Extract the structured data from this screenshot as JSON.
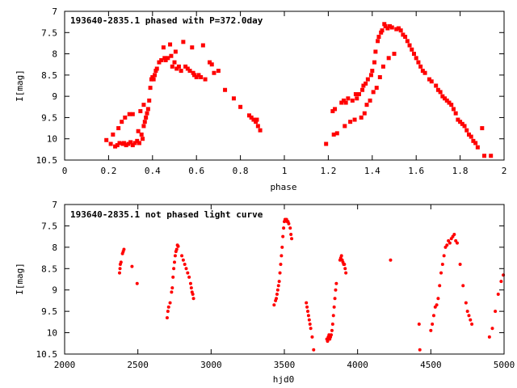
{
  "chart_data": [
    {
      "type": "scatter",
      "title": "193640-2835.1 phased with P=372.0day",
      "xlabel": "phase",
      "ylabel": "I[mag]",
      "xlim": [
        0,
        2
      ],
      "ylim": [
        10.5,
        7
      ],
      "y_inverted": true,
      "xticks": [
        0,
        0.2,
        0.4,
        0.6,
        0.8,
        1,
        1.2,
        1.4,
        1.6,
        1.8,
        2
      ],
      "xtick_labels": [
        "0",
        "0.2",
        "0.4",
        "0.6",
        "0.8",
        "1",
        "1.2",
        "1.4",
        "1.6",
        "1.8",
        "2"
      ],
      "yticks": [
        7,
        7.5,
        8,
        8.5,
        9,
        9.5,
        10,
        10.5
      ],
      "ytick_labels": [
        "7",
        "7.5",
        "8",
        "8.5",
        "9",
        "9.5",
        "10",
        "10.5"
      ],
      "grid": false,
      "legend": "none",
      "marker_color": "#ff0000",
      "points": [
        [
          0.19,
          10.03
        ],
        [
          0.21,
          10.12
        ],
        [
          0.22,
          9.9
        ],
        [
          0.23,
          10.18
        ],
        [
          0.24,
          10.15
        ],
        [
          0.245,
          9.75
        ],
        [
          0.25,
          10.1
        ],
        [
          0.26,
          9.6
        ],
        [
          0.265,
          10.12
        ],
        [
          0.27,
          10.1
        ],
        [
          0.275,
          9.5
        ],
        [
          0.28,
          10.15
        ],
        [
          0.29,
          10.12
        ],
        [
          0.295,
          9.42
        ],
        [
          0.3,
          10.08
        ],
        [
          0.31,
          9.42
        ],
        [
          0.31,
          10.15
        ],
        [
          0.32,
          10.1
        ],
        [
          0.33,
          10.05
        ],
        [
          0.335,
          9.82
        ],
        [
          0.34,
          10.1
        ],
        [
          0.345,
          9.35
        ],
        [
          0.35,
          9.9
        ],
        [
          0.355,
          10.0
        ],
        [
          0.36,
          9.7
        ],
        [
          0.36,
          9.2
        ],
        [
          0.365,
          9.6
        ],
        [
          0.37,
          9.5
        ],
        [
          0.375,
          9.4
        ],
        [
          0.38,
          9.3
        ],
        [
          0.385,
          9.1
        ],
        [
          0.39,
          8.8
        ],
        [
          0.395,
          8.6
        ],
        [
          0.4,
          8.55
        ],
        [
          0.405,
          8.6
        ],
        [
          0.41,
          8.5
        ],
        [
          0.415,
          8.4
        ],
        [
          0.42,
          8.35
        ],
        [
          0.43,
          8.2
        ],
        [
          0.44,
          8.15
        ],
        [
          0.45,
          7.85
        ],
        [
          0.455,
          8.1
        ],
        [
          0.46,
          8.15
        ],
        [
          0.47,
          8.1
        ],
        [
          0.48,
          7.78
        ],
        [
          0.485,
          8.05
        ],
        [
          0.49,
          8.3
        ],
        [
          0.5,
          8.2
        ],
        [
          0.505,
          7.95
        ],
        [
          0.51,
          8.35
        ],
        [
          0.52,
          8.3
        ],
        [
          0.53,
          8.4
        ],
        [
          0.54,
          7.72
        ],
        [
          0.55,
          8.3
        ],
        [
          0.56,
          8.35
        ],
        [
          0.57,
          8.4
        ],
        [
          0.58,
          7.85
        ],
        [
          0.585,
          8.45
        ],
        [
          0.59,
          8.5
        ],
        [
          0.6,
          8.55
        ],
        [
          0.61,
          8.5
        ],
        [
          0.62,
          8.55
        ],
        [
          0.63,
          7.8
        ],
        [
          0.64,
          8.6
        ],
        [
          0.66,
          8.2
        ],
        [
          0.67,
          8.25
        ],
        [
          0.68,
          8.45
        ],
        [
          0.7,
          8.4
        ],
        [
          0.73,
          8.85
        ],
        [
          0.77,
          9.05
        ],
        [
          0.8,
          9.25
        ],
        [
          0.84,
          9.45
        ],
        [
          0.85,
          9.5
        ],
        [
          0.86,
          9.55
        ],
        [
          0.87,
          9.6
        ],
        [
          0.875,
          9.55
        ],
        [
          0.88,
          9.7
        ],
        [
          0.89,
          9.8
        ],
        [
          1.19,
          10.12
        ],
        [
          1.22,
          9.35
        ],
        [
          1.225,
          9.9
        ],
        [
          1.23,
          9.3
        ],
        [
          1.24,
          9.87
        ],
        [
          1.26,
          9.15
        ],
        [
          1.27,
          9.1
        ],
        [
          1.275,
          9.7
        ],
        [
          1.28,
          9.15
        ],
        [
          1.29,
          9.05
        ],
        [
          1.3,
          9.6
        ],
        [
          1.31,
          9.1
        ],
        [
          1.32,
          9.55
        ],
        [
          1.325,
          8.95
        ],
        [
          1.33,
          9.05
        ],
        [
          1.34,
          8.95
        ],
        [
          1.35,
          9.5
        ],
        [
          1.355,
          8.85
        ],
        [
          1.36,
          8.75
        ],
        [
          1.365,
          9.4
        ],
        [
          1.37,
          8.7
        ],
        [
          1.375,
          9.2
        ],
        [
          1.38,
          8.6
        ],
        [
          1.39,
          9.1
        ],
        [
          1.395,
          8.5
        ],
        [
          1.4,
          8.4
        ],
        [
          1.405,
          8.9
        ],
        [
          1.41,
          8.2
        ],
        [
          1.415,
          7.95
        ],
        [
          1.42,
          8.8
        ],
        [
          1.425,
          7.7
        ],
        [
          1.43,
          7.6
        ],
        [
          1.435,
          8.55
        ],
        [
          1.44,
          7.5
        ],
        [
          1.445,
          7.45
        ],
        [
          1.45,
          8.3
        ],
        [
          1.455,
          7.3
        ],
        [
          1.46,
          7.35
        ],
        [
          1.47,
          7.4
        ],
        [
          1.475,
          8.1
        ],
        [
          1.48,
          7.35
        ],
        [
          1.49,
          7.38
        ],
        [
          1.5,
          8.0
        ],
        [
          1.51,
          7.42
        ],
        [
          1.52,
          7.4
        ],
        [
          1.53,
          7.45
        ],
        [
          1.54,
          7.55
        ],
        [
          1.55,
          7.6
        ],
        [
          1.56,
          7.7
        ],
        [
          1.57,
          7.8
        ],
        [
          1.58,
          7.9
        ],
        [
          1.59,
          8.0
        ],
        [
          1.6,
          8.1
        ],
        [
          1.61,
          8.2
        ],
        [
          1.62,
          8.3
        ],
        [
          1.63,
          8.4
        ],
        [
          1.64,
          8.45
        ],
        [
          1.66,
          8.6
        ],
        [
          1.67,
          8.65
        ],
        [
          1.69,
          8.75
        ],
        [
          1.7,
          8.85
        ],
        [
          1.71,
          8.9
        ],
        [
          1.72,
          9.0
        ],
        [
          1.73,
          9.05
        ],
        [
          1.74,
          9.1
        ],
        [
          1.75,
          9.15
        ],
        [
          1.76,
          9.2
        ],
        [
          1.77,
          9.3
        ],
        [
          1.78,
          9.4
        ],
        [
          1.79,
          9.55
        ],
        [
          1.8,
          9.6
        ],
        [
          1.81,
          9.65
        ],
        [
          1.82,
          9.7
        ],
        [
          1.83,
          9.8
        ],
        [
          1.84,
          9.9
        ],
        [
          1.85,
          9.95
        ],
        [
          1.86,
          10.05
        ],
        [
          1.87,
          10.1
        ],
        [
          1.88,
          10.2
        ],
        [
          1.9,
          9.75
        ],
        [
          1.91,
          10.4
        ],
        [
          1.94,
          10.4
        ]
      ]
    },
    {
      "type": "scatter",
      "title": "193640-2835.1 not phased light curve",
      "xlabel": "hjd0",
      "ylabel": "I[mag]",
      "xlim": [
        2000,
        5000
      ],
      "ylim": [
        10.5,
        7
      ],
      "y_inverted": true,
      "xticks": [
        2000,
        2500,
        3000,
        3500,
        4000,
        4500,
        5000
      ],
      "xtick_labels": [
        "2000",
        "2500",
        "3000",
        "3500",
        "4000",
        "4500",
        "5000"
      ],
      "yticks": [
        7,
        7.5,
        8,
        8.5,
        9,
        9.5,
        10,
        10.5
      ],
      "ytick_labels": [
        "7",
        "7.5",
        "8",
        "8.5",
        "9",
        "9.5",
        "10",
        "10.5"
      ],
      "grid": false,
      "legend": "none",
      "marker_color": "#ff0000",
      "points": [
        [
          2375,
          8.6
        ],
        [
          2378,
          8.5
        ],
        [
          2380,
          8.4
        ],
        [
          2385,
          8.35
        ],
        [
          2395,
          8.15
        ],
        [
          2400,
          8.1
        ],
        [
          2405,
          8.05
        ],
        [
          2460,
          8.45
        ],
        [
          2495,
          8.85
        ],
        [
          2700,
          9.65
        ],
        [
          2705,
          9.5
        ],
        [
          2710,
          9.4
        ],
        [
          2720,
          9.3
        ],
        [
          2730,
          9.05
        ],
        [
          2735,
          8.95
        ],
        [
          2740,
          8.7
        ],
        [
          2745,
          8.5
        ],
        [
          2750,
          8.35
        ],
        [
          2755,
          8.2
        ],
        [
          2760,
          8.1
        ],
        [
          2765,
          8.05
        ],
        [
          2770,
          7.95
        ],
        [
          2775,
          7.98
        ],
        [
          2800,
          8.2
        ],
        [
          2810,
          8.3
        ],
        [
          2820,
          8.4
        ],
        [
          2830,
          8.5
        ],
        [
          2840,
          8.6
        ],
        [
          2850,
          8.7
        ],
        [
          2860,
          8.85
        ],
        [
          2865,
          8.95
        ],
        [
          2870,
          9.05
        ],
        [
          2875,
          9.1
        ],
        [
          2880,
          9.2
        ],
        [
          3430,
          9.35
        ],
        [
          3440,
          9.25
        ],
        [
          3445,
          9.2
        ],
        [
          3450,
          9.1
        ],
        [
          3455,
          9.0
        ],
        [
          3460,
          8.9
        ],
        [
          3465,
          8.8
        ],
        [
          3470,
          8.6
        ],
        [
          3475,
          8.4
        ],
        [
          3480,
          8.2
        ],
        [
          3485,
          8.0
        ],
        [
          3490,
          7.75
        ],
        [
          3495,
          7.55
        ],
        [
          3500,
          7.4
        ],
        [
          3505,
          7.35
        ],
        [
          3510,
          7.38
        ],
        [
          3515,
          7.35
        ],
        [
          3520,
          7.4
        ],
        [
          3525,
          7.4
        ],
        [
          3530,
          7.45
        ],
        [
          3540,
          7.55
        ],
        [
          3545,
          7.7
        ],
        [
          3550,
          7.8
        ],
        [
          3650,
          9.3
        ],
        [
          3655,
          9.4
        ],
        [
          3660,
          9.5
        ],
        [
          3665,
          9.6
        ],
        [
          3670,
          9.7
        ],
        [
          3675,
          9.8
        ],
        [
          3680,
          9.9
        ],
        [
          3690,
          10.1
        ],
        [
          3700,
          10.4
        ],
        [
          3790,
          10.15
        ],
        [
          3795,
          10.2
        ],
        [
          3800,
          10.1
        ],
        [
          3805,
          10.05
        ],
        [
          3810,
          10.15
        ],
        [
          3815,
          10.1
        ],
        [
          3820,
          10.05
        ],
        [
          3825,
          9.95
        ],
        [
          3830,
          9.8
        ],
        [
          3835,
          9.6
        ],
        [
          3840,
          9.4
        ],
        [
          3845,
          9.2
        ],
        [
          3850,
          9.0
        ],
        [
          3855,
          8.85
        ],
        [
          3880,
          8.3
        ],
        [
          3885,
          8.25
        ],
        [
          3890,
          8.2
        ],
        [
          3895,
          8.3
        ],
        [
          3900,
          8.35
        ],
        [
          3905,
          8.4
        ],
        [
          3910,
          8.4
        ],
        [
          3915,
          8.5
        ],
        [
          3920,
          8.6
        ],
        [
          4225,
          8.3
        ],
        [
          4420,
          9.8
        ],
        [
          4425,
          10.4
        ],
        [
          4500,
          9.95
        ],
        [
          4510,
          9.8
        ],
        [
          4520,
          9.6
        ],
        [
          4530,
          9.4
        ],
        [
          4540,
          9.35
        ],
        [
          4550,
          9.2
        ],
        [
          4560,
          8.9
        ],
        [
          4570,
          8.6
        ],
        [
          4580,
          8.4
        ],
        [
          4590,
          8.2
        ],
        [
          4600,
          8.0
        ],
        [
          4610,
          7.95
        ],
        [
          4620,
          7.85
        ],
        [
          4630,
          7.9
        ],
        [
          4640,
          7.8
        ],
        [
          4650,
          7.75
        ],
        [
          4660,
          7.7
        ],
        [
          4670,
          7.85
        ],
        [
          4680,
          7.9
        ],
        [
          4700,
          8.4
        ],
        [
          4720,
          8.9
        ],
        [
          4740,
          9.3
        ],
        [
          4750,
          9.5
        ],
        [
          4760,
          9.6
        ],
        [
          4770,
          9.7
        ],
        [
          4780,
          9.8
        ],
        [
          4900,
          10.1
        ],
        [
          4920,
          9.9
        ],
        [
          4940,
          9.5
        ],
        [
          4960,
          9.1
        ],
        [
          4980,
          8.8
        ],
        [
          4995,
          8.65
        ]
      ]
    }
  ]
}
